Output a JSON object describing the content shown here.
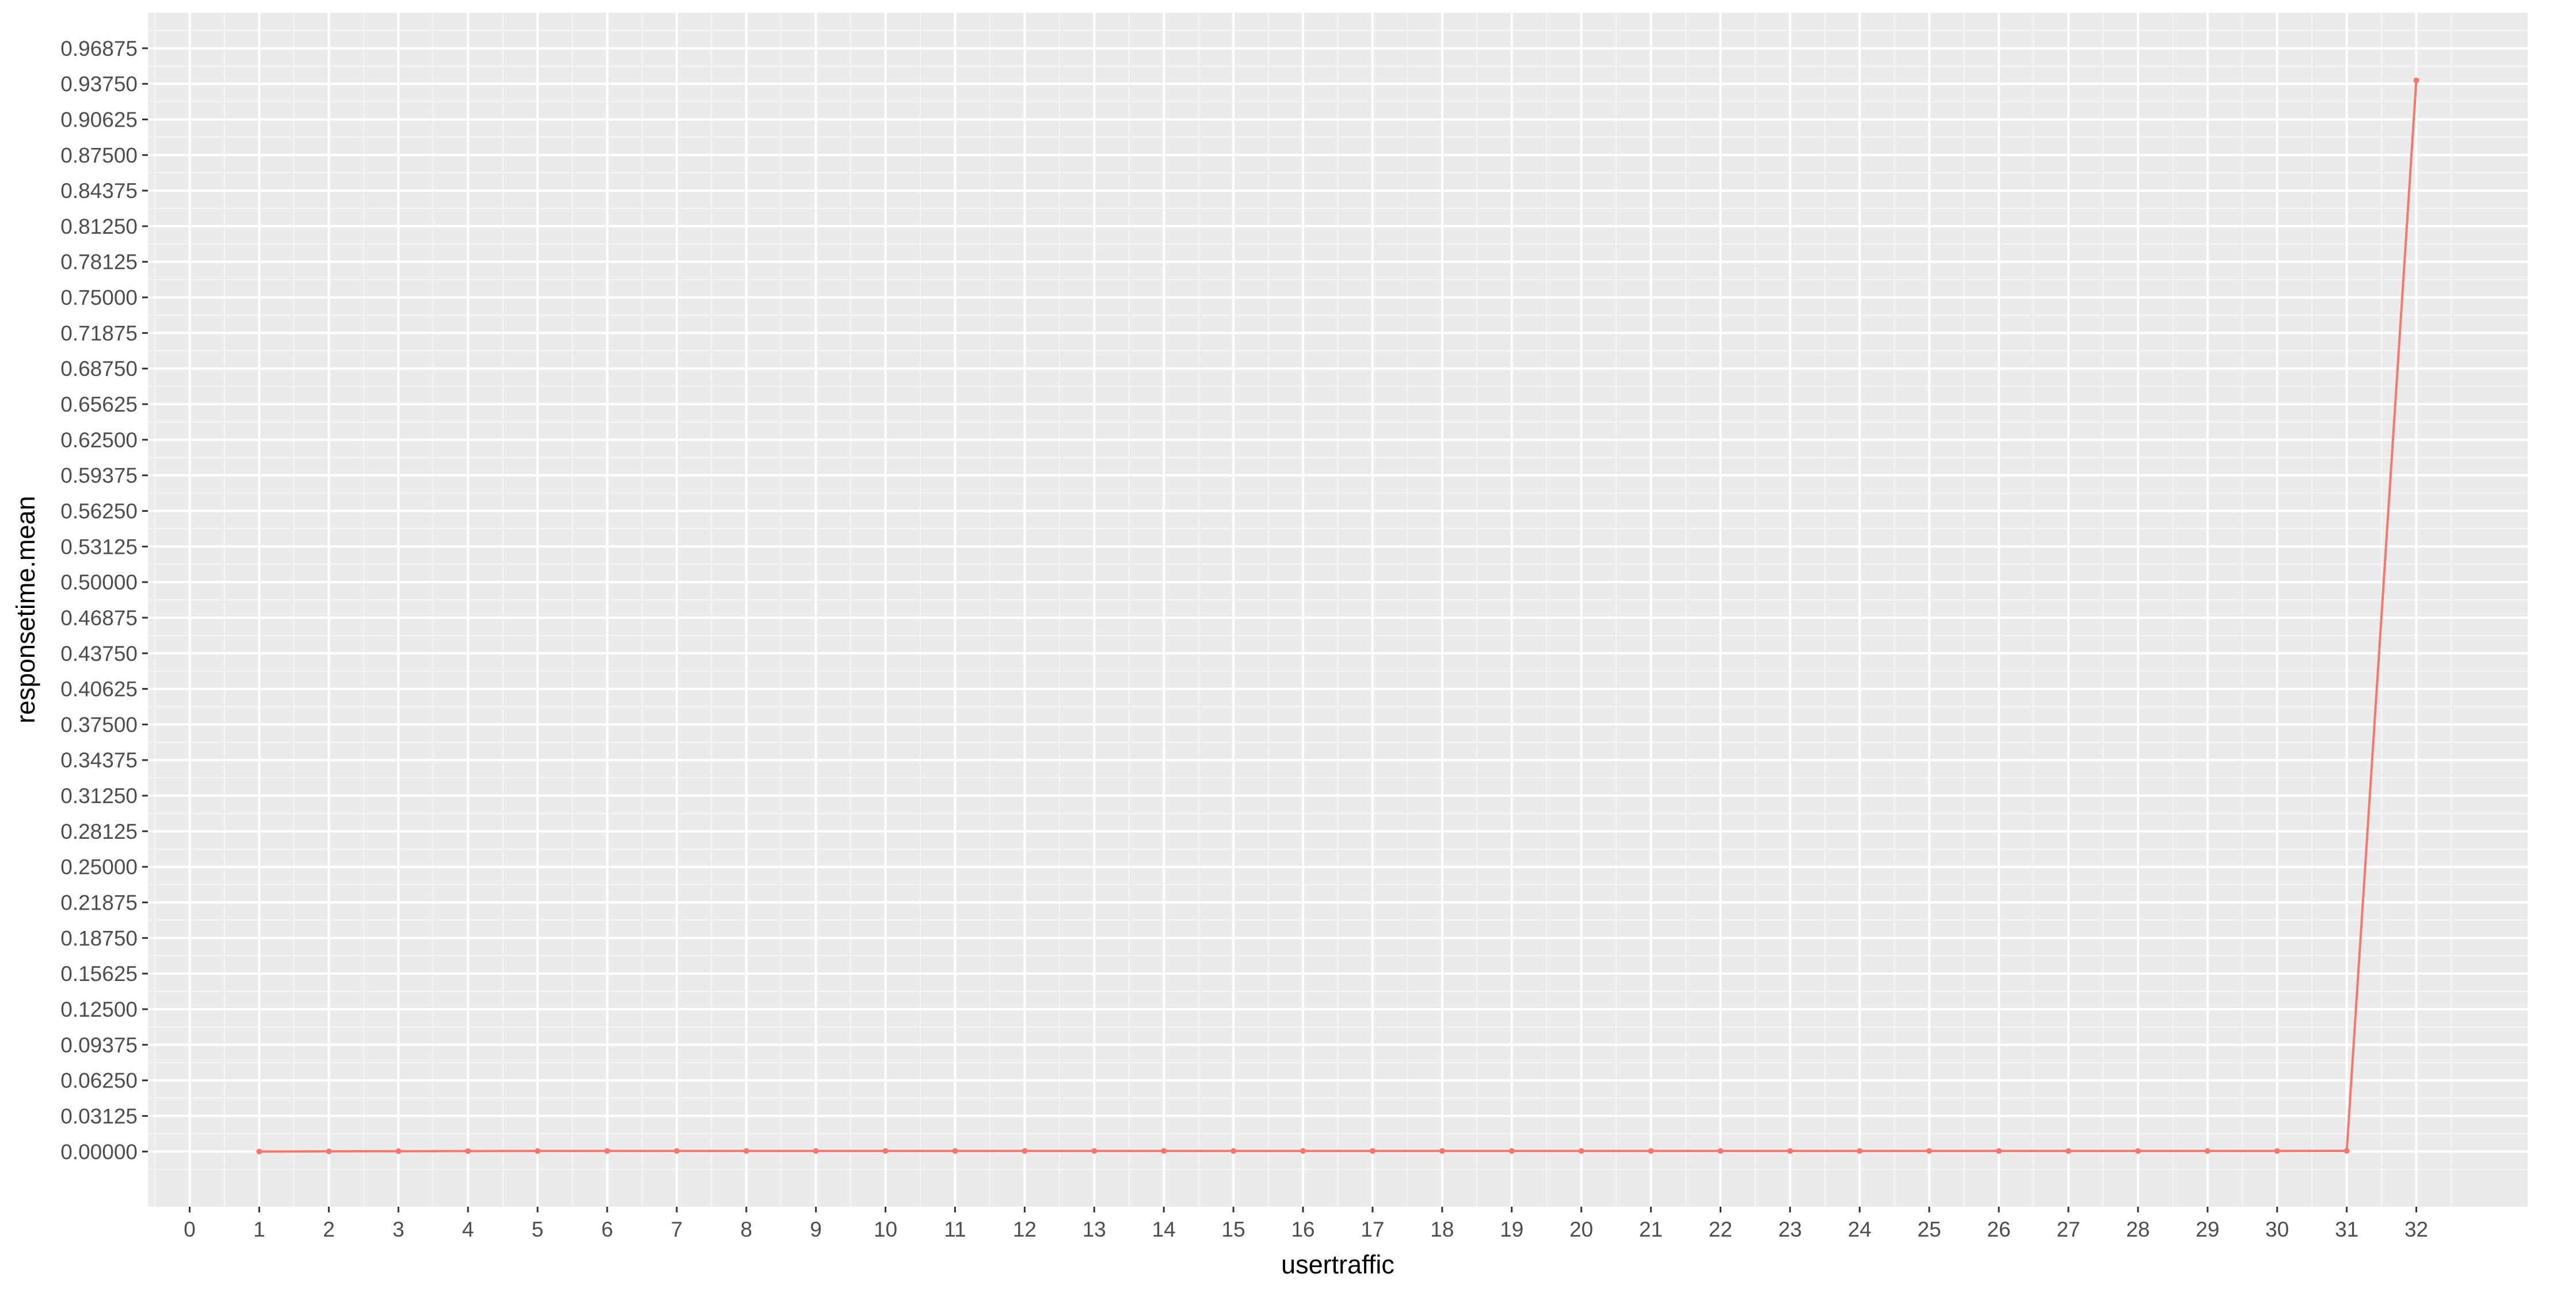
{
  "colors": {
    "panel_background": "#EBEBEB",
    "grid_major": "#FFFFFF",
    "grid_minor": "#F5F5F5",
    "series_line": "#F8766D",
    "tick_text": "#4D4D4D",
    "axis_title_text": "#000000"
  },
  "chart_data": {
    "type": "line",
    "title": "",
    "xlabel": "usertraffic",
    "ylabel": "responsetime.mean",
    "xlim": [
      -0.6,
      33.6
    ],
    "ylim": [
      -0.0484,
      1.0
    ],
    "grid": true,
    "legend": "none",
    "x_ticks": [
      "0",
      "1",
      "2",
      "3",
      "4",
      "5",
      "6",
      "7",
      "8",
      "9",
      "10",
      "11",
      "12",
      "13",
      "14",
      "15",
      "16",
      "17",
      "18",
      "19",
      "20",
      "21",
      "22",
      "23",
      "24",
      "25",
      "26",
      "27",
      "28",
      "29",
      "30",
      "31",
      "32"
    ],
    "y_ticks": [
      "0.00000",
      "0.03125",
      "0.06250",
      "0.09375",
      "0.12500",
      "0.15625",
      "0.18750",
      "0.21875",
      "0.25000",
      "0.28125",
      "0.31250",
      "0.34375",
      "0.37500",
      "0.40625",
      "0.43750",
      "0.46875",
      "0.50000",
      "0.53125",
      "0.56250",
      "0.59375",
      "0.62500",
      "0.65625",
      "0.68750",
      "0.71875",
      "0.75000",
      "0.78125",
      "0.81250",
      "0.84375",
      "0.87500",
      "0.90625",
      "0.93750",
      "0.96875"
    ],
    "series": [
      {
        "x": [
          1,
          2,
          3,
          4,
          5,
          6,
          7,
          8,
          9,
          10,
          11,
          12,
          13,
          14,
          15,
          16,
          17,
          18,
          19,
          20,
          21,
          22,
          23,
          24,
          25,
          26,
          27,
          28,
          29,
          30,
          31,
          32
        ],
        "y": [
          0.0,
          0.0002,
          0.0003,
          0.0004,
          0.0005,
          0.0005,
          0.0005,
          0.0005,
          0.0005,
          0.0005,
          0.0005,
          0.0005,
          0.0005,
          0.0005,
          0.0005,
          0.0005,
          0.0005,
          0.0005,
          0.0005,
          0.0005,
          0.0005,
          0.0005,
          0.0005,
          0.0005,
          0.0005,
          0.0005,
          0.0005,
          0.0005,
          0.0005,
          0.0005,
          0.0006,
          0.9405
        ]
      }
    ]
  }
}
